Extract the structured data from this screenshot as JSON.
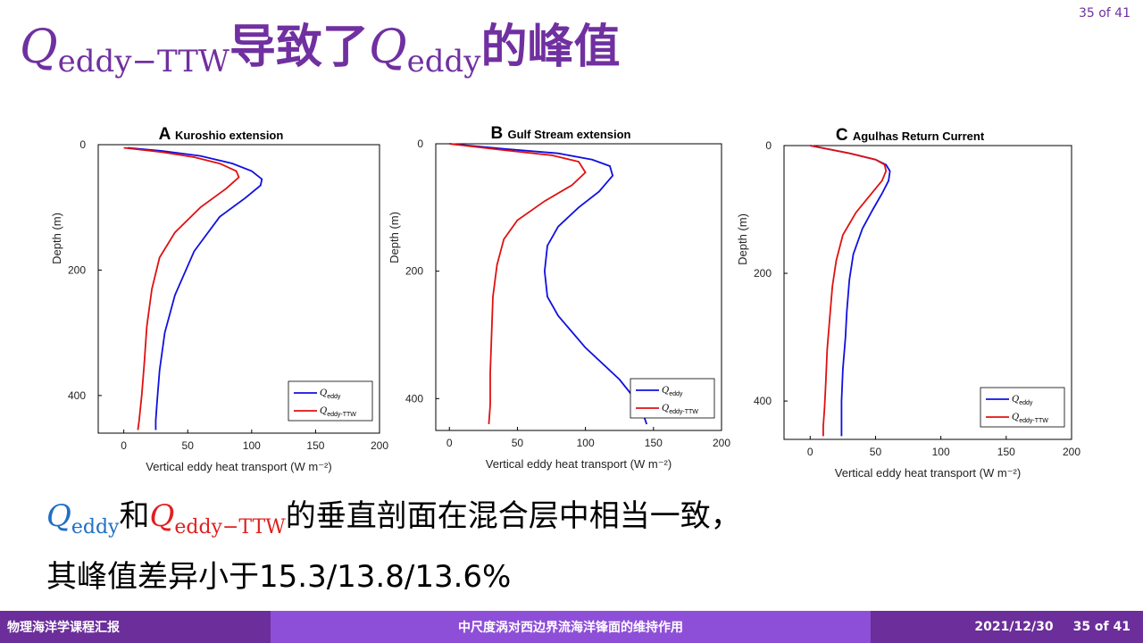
{
  "page_number_top": "35 of 41",
  "title": {
    "q1": "Q",
    "q1_sub": "eddy−TTW",
    "mid": "导致了",
    "q2": "Q",
    "q2_sub": "eddy",
    "end": "的峰值"
  },
  "chart_data": [
    {
      "type": "line",
      "panel_letter": "A",
      "title": "Kuroshio extension",
      "xlabel": "Vertical eddy heat transport (W m⁻²)",
      "ylabel": "Depth (m)",
      "xlim": [
        -20,
        200
      ],
      "ylim": [
        0,
        460
      ],
      "y_inverted": true,
      "xticks": [
        "0",
        "50",
        "100",
        "150",
        "200"
      ],
      "yticks": [
        "0",
        "200",
        "400"
      ],
      "legend_position": "bottom-right",
      "series": [
        {
          "name": "Q_eddy",
          "color": "#1010E0",
          "x": [
            3,
            30,
            60,
            85,
            100,
            108,
            107,
            95,
            75,
            55,
            40,
            32,
            28,
            26,
            25,
            25
          ],
          "y": [
            5,
            10,
            18,
            30,
            42,
            55,
            65,
            85,
            115,
            170,
            240,
            300,
            360,
            410,
            440,
            455
          ]
        },
        {
          "name": "Q_eddy-TTW",
          "color": "#E01010",
          "x": [
            0,
            30,
            55,
            75,
            88,
            90,
            80,
            60,
            40,
            28,
            22,
            18,
            16,
            14,
            12,
            11
          ],
          "y": [
            5,
            12,
            20,
            30,
            42,
            52,
            70,
            100,
            140,
            180,
            230,
            290,
            350,
            400,
            440,
            455
          ]
        }
      ]
    },
    {
      "type": "line",
      "panel_letter": "B",
      "title": "Gulf Stream extension",
      "xlabel": "Vertical eddy heat transport (W m⁻²)",
      "ylabel": "Depth (m)",
      "xlim": [
        -10,
        200
      ],
      "ylim": [
        0,
        450
      ],
      "y_inverted": true,
      "xticks": [
        "0",
        "50",
        "100",
        "150",
        "200"
      ],
      "yticks": [
        "0",
        "200",
        "400"
      ],
      "legend_position": "bottom-right",
      "series": [
        {
          "name": "Q_eddy",
          "color": "#1010E0",
          "x": [
            0,
            40,
            80,
            105,
            118,
            120,
            110,
            95,
            80,
            72,
            70,
            72,
            80,
            100,
            125,
            140,
            145
          ],
          "y": [
            0,
            8,
            15,
            25,
            35,
            50,
            75,
            100,
            130,
            160,
            200,
            240,
            270,
            320,
            370,
            410,
            440
          ]
        },
        {
          "name": "Q_eddy-TTW",
          "color": "#E01010",
          "x": [
            0,
            40,
            75,
            95,
            100,
            90,
            70,
            50,
            40,
            35,
            32,
            31,
            30,
            30,
            29
          ],
          "y": [
            0,
            10,
            18,
            28,
            45,
            65,
            90,
            120,
            150,
            190,
            240,
            300,
            360,
            410,
            440
          ]
        }
      ]
    },
    {
      "type": "line",
      "panel_letter": "C",
      "title": "Agulhas Return Current",
      "xlabel": "Vertical eddy heat transport (W m⁻²)",
      "ylabel": "Depth (m)",
      "xlim": [
        -20,
        200
      ],
      "ylim": [
        0,
        460
      ],
      "y_inverted": true,
      "xticks": [
        "0",
        "50",
        "100",
        "150",
        "200"
      ],
      "yticks": [
        "0",
        "200",
        "400"
      ],
      "legend_position": "bottom-right",
      "series": [
        {
          "name": "Q_eddy",
          "color": "#1010E0",
          "x": [
            0,
            30,
            50,
            58,
            61,
            60,
            55,
            48,
            40,
            33,
            30,
            28,
            27,
            25,
            24,
            24,
            24
          ],
          "y": [
            0,
            12,
            22,
            30,
            40,
            55,
            75,
            100,
            130,
            170,
            210,
            260,
            300,
            350,
            400,
            440,
            455
          ]
        },
        {
          "name": "Q_eddy-TTW",
          "color": "#E01010",
          "x": [
            0,
            30,
            50,
            57,
            58,
            55,
            45,
            35,
            25,
            20,
            17,
            15,
            13,
            12,
            11,
            10,
            10
          ],
          "y": [
            0,
            12,
            22,
            30,
            40,
            55,
            80,
            105,
            140,
            180,
            220,
            270,
            320,
            370,
            410,
            440,
            455
          ]
        }
      ]
    }
  ],
  "legend_labels": {
    "q": "Q",
    "eddy_sub": "eddy",
    "ttw_sub": "eddy-TTW"
  },
  "body": {
    "line1_q1": "Q",
    "line1_q1_sub": "eddy",
    "line1_and": "和",
    "line1_q2": "Q",
    "line1_q2_sub": "eddy−TTW",
    "line1_rest": "的垂直剖面在混合层中相当一致，",
    "line2": "其峰值差异小于15.3/13.8/13.6%"
  },
  "footer": {
    "left": "物理海洋学课程汇报",
    "center": "中尺度涡对西边界流海洋锋面的维持作用",
    "date": "2021/12/30",
    "page": "35 of 41"
  }
}
